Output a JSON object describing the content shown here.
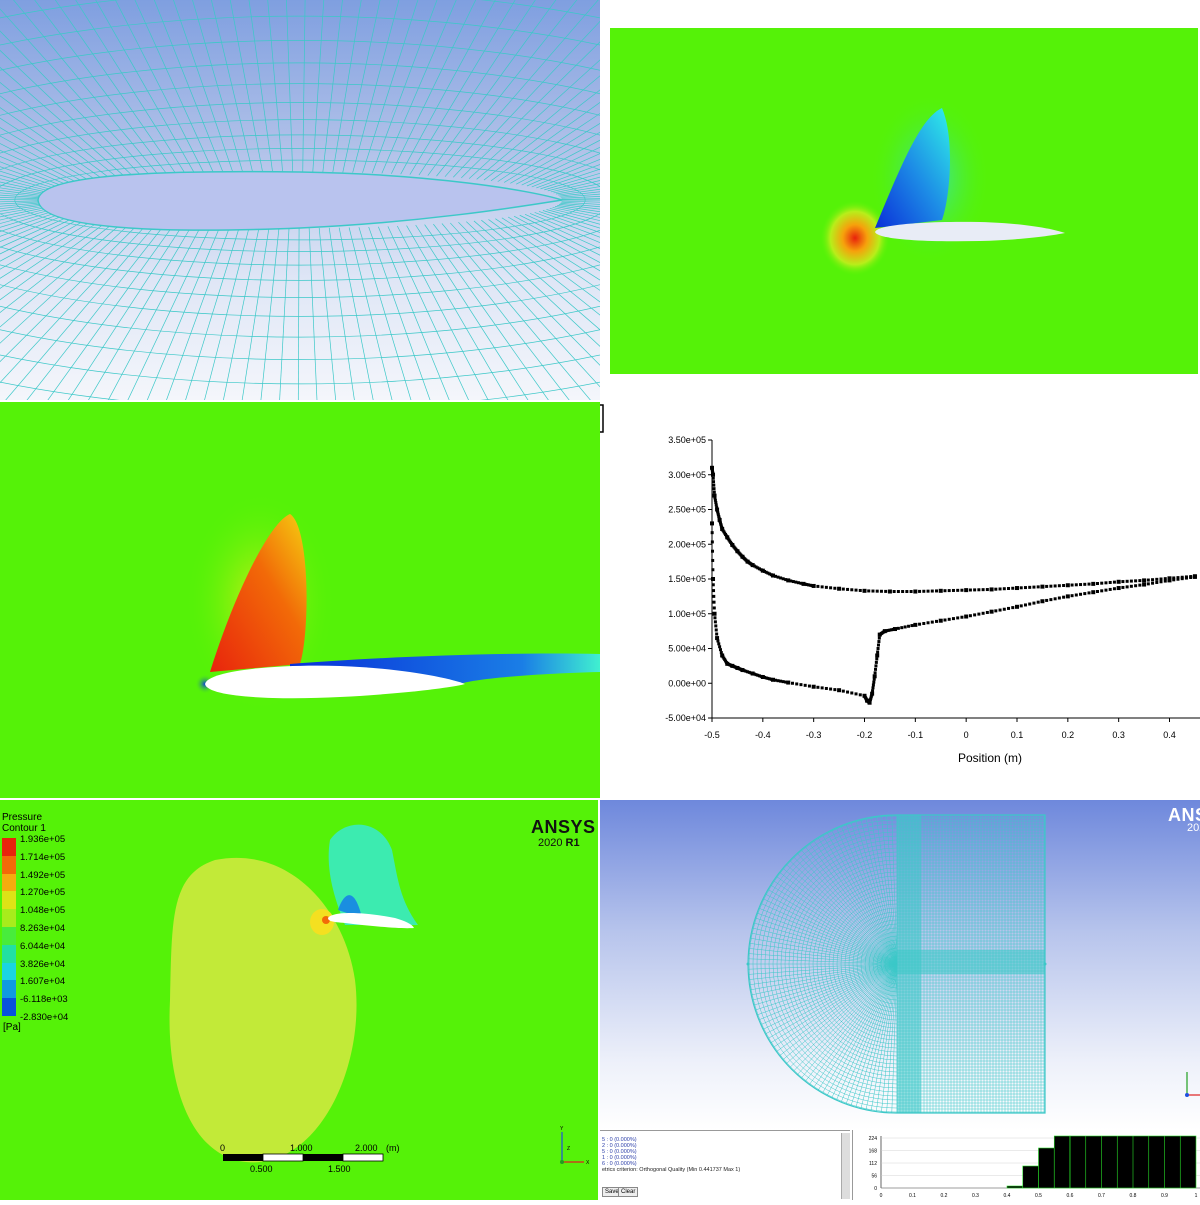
{
  "plot": {
    "xlabel": "Position (m)",
    "ytick_labels": [
      "3.50e+05",
      "3.00e+05",
      "2.50e+05",
      "2.00e+05",
      "1.50e+05",
      "1.00e+05",
      "5.00e+04",
      "0.00e+00",
      "-5.00e+04"
    ],
    "xtick_labels": [
      "-0.5",
      "-0.4",
      "-0.3",
      "-0.2",
      "-0.1",
      "0",
      "0.1",
      "0.2",
      "0.3",
      "0.4"
    ]
  },
  "chart_data": {
    "type": "scatter",
    "xlabel": "Position (m)",
    "ylabel": "",
    "xlim": [
      -0.5,
      0.46
    ],
    "ylim": [
      -50000,
      350000
    ],
    "series": [
      {
        "x": [
          -0.5,
          -0.498,
          -0.495,
          -0.49,
          -0.485,
          -0.48,
          -0.47,
          -0.46,
          -0.45,
          -0.44,
          -0.43,
          -0.42,
          -0.4,
          -0.38,
          -0.35,
          -0.32,
          -0.3,
          -0.25,
          -0.2,
          -0.15,
          -0.1,
          -0.05,
          0,
          0.05,
          0.1,
          0.15,
          0.2,
          0.25,
          0.3,
          0.35,
          0.4,
          0.45
        ],
        "y": [
          310000,
          300000,
          270000,
          250000,
          235000,
          222000,
          210000,
          199000,
          190000,
          182000,
          175000,
          170000,
          162000,
          155000,
          148000,
          143000,
          140000,
          136000,
          133000,
          132000,
          132000,
          133000,
          134000,
          135000,
          137000,
          139000,
          141000,
          143000,
          146000,
          148000,
          151000,
          154000
        ]
      },
      {
        "x": [
          -0.5,
          -0.498,
          -0.495,
          -0.49,
          -0.48,
          -0.47,
          -0.46,
          -0.45,
          -0.44,
          -0.42,
          -0.4,
          -0.38,
          -0.35,
          -0.3,
          -0.25,
          -0.2,
          -0.195,
          -0.19,
          -0.185,
          -0.18,
          -0.175,
          -0.17,
          -0.16,
          -0.14,
          -0.1,
          -0.05,
          0,
          0.05,
          0.1,
          0.15,
          0.2,
          0.25,
          0.3,
          0.35,
          0.4,
          0.45
        ],
        "y": [
          230000,
          150000,
          100000,
          65000,
          40000,
          28000,
          25000,
          22000,
          19000,
          14000,
          9000,
          5000,
          1000,
          -5000,
          -10000,
          -18000,
          -25000,
          -28000,
          -15000,
          10000,
          40000,
          70000,
          75000,
          78000,
          84000,
          90000,
          96000,
          103000,
          110000,
          118000,
          125000,
          131000,
          137000,
          142000,
          148000,
          153000
        ]
      }
    ]
  },
  "legend": {
    "title_line1": "Pressure",
    "title_line2": "Contour 1",
    "colors": [
      "#e8240c",
      "#f26a08",
      "#f5ac0e",
      "#dde316",
      "#a8ec1c",
      "#48ec3c",
      "#22e0a2",
      "#1ad5e2",
      "#109ae0",
      "#0852dc"
    ],
    "labels": [
      "1.936e+05",
      "1.714e+05",
      "1.492e+05",
      "1.270e+05",
      "1.048e+05",
      "8.263e+04",
      "6.044e+04",
      "3.826e+04",
      "1.607e+04",
      "-6.118e+03",
      "-2.830e+04"
    ],
    "unit": "[Pa]"
  },
  "ansys": {
    "logo": "ANSYS",
    "version": "2020",
    "release": "R1",
    "logo_partial": "ANSY",
    "version_partial": "202"
  },
  "scale_bar": {
    "labels_top": [
      "0",
      "1.000",
      "2.000"
    ],
    "unit": "(m)",
    "labels_bottom": [
      "0.500",
      "1.500"
    ]
  },
  "triad": {
    "y": "Y",
    "z": "Z",
    "x": "X"
  },
  "console": {
    "lines": [
      "5 : 0 (0.000%)",
      "2 : 0 (0.000%)",
      "5 : 0 (0.000%)",
      "1 : 0 (0.000%)",
      "6 : 0 (0.000%)"
    ],
    "metric": "etrics criterion: Orthogonal Quality (Min 0.441737 Max 1)",
    "save": "Save",
    "clear": "Clear"
  },
  "histogram": {
    "yticks": [
      "224",
      "168",
      "112",
      "56",
      "0"
    ],
    "xticks": [
      "0",
      "0.1",
      "0.2",
      "0.3",
      "0.4",
      "0.5",
      "0.6",
      "0.7",
      "0.8",
      "0.9",
      "1"
    ]
  },
  "colors": {
    "freestream_green": "#55f208",
    "mesh_cyan": "#3cc8c8"
  }
}
